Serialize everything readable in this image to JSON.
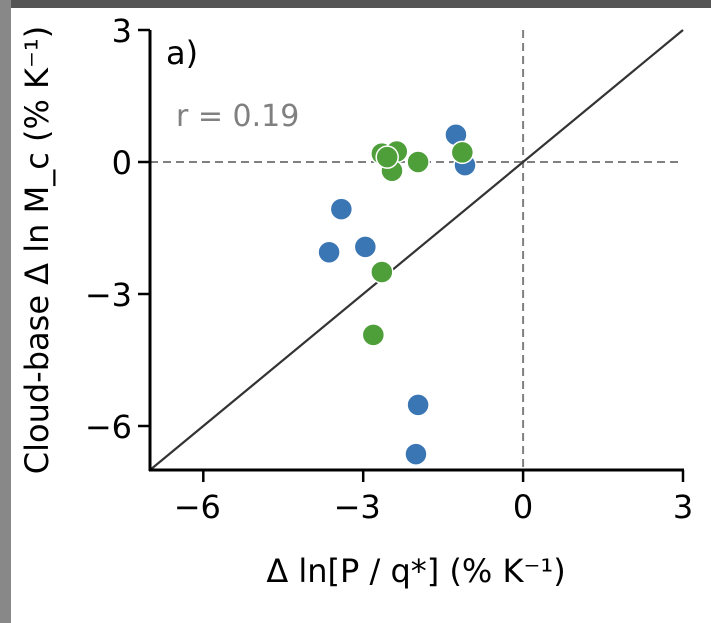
{
  "chart_data": {
    "type": "scatter",
    "panel_label": "a)",
    "annotation": "r = 0.19",
    "xlabel": "Δ ln[P / q*]  (% K⁻¹)",
    "ylabel": "Cloud-base Δ ln M_c  (% K⁻¹)",
    "xlim": [
      -7,
      3
    ],
    "ylim": [
      -7,
      3
    ],
    "xticks": [
      -6,
      -3,
      0,
      3
    ],
    "yticks": [
      -6,
      -3,
      0,
      3
    ],
    "xtick_labels": [
      "−6",
      "−3",
      "0",
      "3"
    ],
    "ytick_labels": [
      "−6",
      "−3",
      "0",
      "3"
    ],
    "reference_lines": {
      "one_to_one": true,
      "x_zero_dashed": true,
      "y_zero_dashed": true
    },
    "series": [
      {
        "name": "blue",
        "color": "#3a76b4",
        "points": [
          [
            -1.26,
            0.62
          ],
          [
            -1.09,
            -0.07
          ],
          [
            -3.41,
            -1.07
          ],
          [
            -3.64,
            -2.05
          ],
          [
            -2.96,
            -1.93
          ],
          [
            -1.97,
            -5.52
          ],
          [
            -2.01,
            -6.64
          ]
        ]
      },
      {
        "name": "green",
        "color": "#4e9e3a",
        "points": [
          [
            -2.65,
            -2.5
          ],
          [
            -2.81,
            -3.93
          ],
          [
            -1.97,
            0.0
          ],
          [
            -1.14,
            0.22
          ],
          [
            -2.65,
            0.19
          ],
          [
            -2.37,
            0.24
          ],
          [
            -2.46,
            -0.2
          ],
          [
            -2.55,
            0.11
          ]
        ]
      }
    ]
  }
}
